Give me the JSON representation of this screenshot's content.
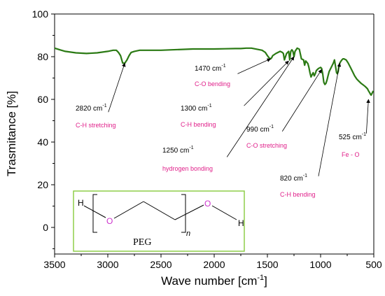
{
  "chart_data": {
    "type": "line",
    "xlabel": "Wave number [cm",
    "xlabel_sup": "-1",
    "xlabel_tail": "]",
    "ylabel": "Trasmitance [%]",
    "xlim": [
      3500,
      500
    ],
    "ylim": [
      -8,
      100
    ],
    "xticks": [
      "3500",
      "3000",
      "2500",
      "2000",
      "1500",
      "1000",
      "500"
    ],
    "yticks": [
      "100",
      "80",
      "60",
      "40",
      "20",
      "0"
    ],
    "grid": false,
    "series": [
      {
        "color": "#2b7a14",
        "x": [
          3500,
          3450,
          3400,
          3300,
          3200,
          3100,
          3000,
          2950,
          2920,
          2900,
          2880,
          2860,
          2840,
          2820,
          2800,
          2780,
          2750,
          2700,
          2600,
          2500,
          2400,
          2300,
          2200,
          2100,
          2000,
          1900,
          1800,
          1750,
          1700,
          1650,
          1600,
          1550,
          1520,
          1500,
          1480,
          1470,
          1460,
          1450,
          1420,
          1400,
          1380,
          1360,
          1350,
          1340,
          1320,
          1300,
          1290,
          1280,
          1270,
          1260,
          1250,
          1240,
          1220,
          1200,
          1180,
          1160,
          1150,
          1140,
          1120,
          1110,
          1100,
          1090,
          1080,
          1070,
          1060,
          1050,
          1040,
          1020,
          1000,
          990,
          980,
          970,
          960,
          950,
          940,
          930,
          920,
          900,
          880,
          870,
          860,
          850,
          842,
          835,
          830,
          820,
          810,
          800,
          790,
          780,
          760,
          740,
          720,
          700,
          680,
          660,
          640,
          620,
          600,
          580,
          560,
          550,
          540,
          530,
          525,
          520,
          510,
          505
        ],
        "y": [
          84,
          83.2,
          82.5,
          81.8,
          81.5,
          81.8,
          82.5,
          83,
          83,
          82,
          80.5,
          77,
          77,
          78.5,
          80.5,
          82,
          82.5,
          83,
          83,
          83,
          83.2,
          83.4,
          83.6,
          83.6,
          83.6,
          83.7,
          83.8,
          83.8,
          84,
          84,
          83.5,
          83,
          82,
          80.5,
          79.2,
          79,
          79.5,
          80.5,
          81.5,
          82,
          82.5,
          82,
          81.5,
          78.5,
          81.5,
          82.5,
          78.5,
          82.5,
          83.2,
          82.5,
          80,
          82.5,
          84,
          83.5,
          79,
          78.5,
          76,
          78,
          76.8,
          75,
          72.5,
          70.5,
          71.5,
          72.5,
          71,
          72,
          73.5,
          74.5,
          75,
          74.5,
          72,
          68,
          67,
          67.5,
          69,
          71,
          73,
          75,
          77,
          78.5,
          75.5,
          72.5,
          72,
          73,
          75,
          77,
          77.8,
          78.5,
          79,
          79,
          78.5,
          77,
          75,
          73,
          71,
          69.5,
          68.5,
          67.5,
          66.8,
          66,
          65,
          64,
          63.2,
          62.3,
          62,
          62.5,
          63.5,
          64
        ]
      }
    ],
    "annotations": [
      {
        "wavenumber": "2820 cm",
        "sup": "-1",
        "assignment": "C-H stretching",
        "target": [
          2840,
          77
        ],
        "tail": [
          2995,
          54
        ]
      },
      {
        "wavenumber": "1470 cm",
        "sup": "-1",
        "assignment": "C-O bending",
        "target": [
          1470,
          79
        ],
        "tail": [
          1780,
          72
        ]
      },
      {
        "wavenumber": "1300 cm",
        "sup": "-1",
        "assignment": "C-H bending",
        "target": [
          1300,
          78
        ],
        "tail": [
          1720,
          57
        ]
      },
      {
        "wavenumber": "1250 cm",
        "sup": "-1",
        "assignment": "hydrogen bonding",
        "target": [
          1250,
          80
        ],
        "tail": [
          1880,
          33
        ]
      },
      {
        "wavenumber": "990 cm",
        "sup": "-1",
        "assignment": "C-O stretching",
        "target": [
          990,
          74
        ],
        "tail": [
          1360,
          45
        ]
      },
      {
        "wavenumber": "820 cm",
        "sup": "-1",
        "assignment": "C-H bending",
        "target": [
          820,
          77
        ],
        "tail": [
          1020,
          24
        ]
      },
      {
        "wavenumber": "525 cm",
        "sup": "-1",
        "assignment": "Fe - O",
        "target": [
          550,
          60
        ],
        "tail": [
          570,
          44
        ]
      }
    ],
    "inset": {
      "structure_name": "PEG",
      "left_atom": "H",
      "right_atom": "H",
      "oxygen": "O",
      "repeat_index": "n"
    }
  },
  "colors": {
    "line": "#2b7a14",
    "label_accent": "#e0208a",
    "inset_border": "#8fce4a",
    "oxygen": "#cc33cc"
  }
}
